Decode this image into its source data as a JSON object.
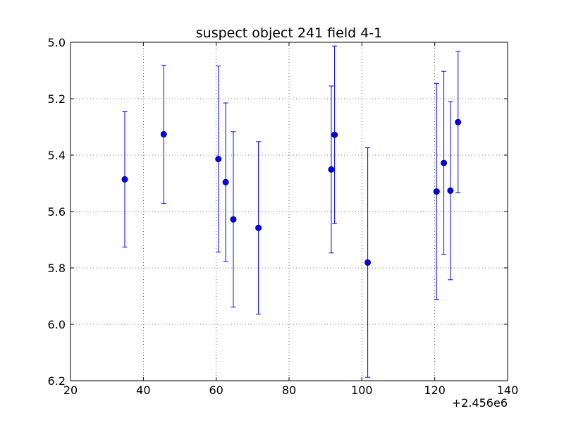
{
  "chart_data": {
    "type": "scatter",
    "title": "suspect object 241 field 4-1",
    "xlabel": "",
    "ylabel": "",
    "x_offset_label": "+2.456e6",
    "xlim": [
      20,
      140
    ],
    "ylim": [
      5.0,
      6.2
    ],
    "y_inverted": true,
    "grid": true,
    "x_ticks": [
      20,
      40,
      60,
      80,
      100,
      120,
      140
    ],
    "x_tick_labels": [
      "20",
      "40",
      "60",
      "80",
      "100",
      "120",
      "140"
    ],
    "y_ticks": [
      5.0,
      5.2,
      5.4,
      5.6,
      5.8,
      6.0,
      6.2
    ],
    "y_tick_labels": [
      "5.0",
      "5.2",
      "5.4",
      "5.6",
      "5.8",
      "6.0",
      "6.2"
    ],
    "series": [
      {
        "color": "#0000ff",
        "marker": "circle",
        "points": [
          {
            "x": 34.9,
            "y": 5.486,
            "err": 0.24
          },
          {
            "x": 45.6,
            "y": 5.326,
            "err": 0.245
          },
          {
            "x": 60.6,
            "y": 5.414,
            "err": 0.33
          },
          {
            "x": 62.6,
            "y": 5.496,
            "err": 0.281
          },
          {
            "x": 64.7,
            "y": 5.628,
            "err": 0.311
          },
          {
            "x": 71.6,
            "y": 5.658,
            "err": 0.306
          },
          {
            "x": 91.6,
            "y": 5.451,
            "err": 0.296
          },
          {
            "x": 92.5,
            "y": 5.328,
            "err": 0.315
          },
          {
            "x": 101.6,
            "y": 5.781,
            "err": 0.407
          },
          {
            "x": 120.5,
            "y": 5.529,
            "err": 0.383
          },
          {
            "x": 122.5,
            "y": 5.428,
            "err": 0.325
          },
          {
            "x": 124.3,
            "y": 5.526,
            "err": 0.316
          },
          {
            "x": 126.4,
            "y": 5.283,
            "err": 0.251
          }
        ]
      }
    ]
  }
}
